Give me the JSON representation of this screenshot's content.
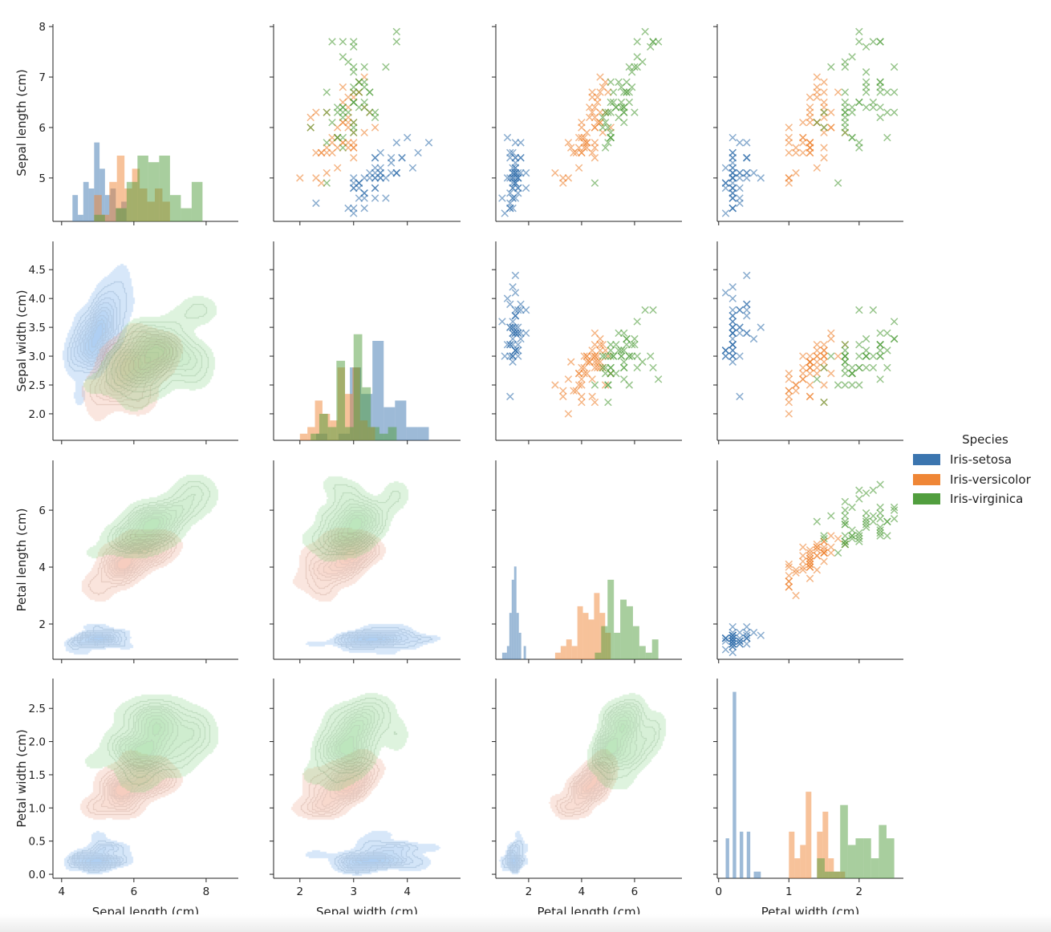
{
  "legend": {
    "title": "Species",
    "entries": [
      {
        "label": "Iris-setosa",
        "color": "#3b75af"
      },
      {
        "label": "Iris-versicolor",
        "color": "#ef8636"
      },
      {
        "label": "Iris-virginica",
        "color": "#519e3e"
      }
    ]
  },
  "chart_data": {
    "type": "scatter",
    "layout": "pairplot 4x4",
    "upper": "scatter (x markers)",
    "diagonal": "histogram (counts, 10 bins per species)",
    "lower": "kde (filled contours)",
    "grid": false,
    "legend_position": "right",
    "variables": [
      {
        "label": "Sepal length (cm)",
        "xlim": [
          3.76,
          8.89
        ],
        "ylim": [
          4.14,
          8.05
        ],
        "xticks": [
          4,
          6,
          8
        ],
        "xtick_labels": [
          "4",
          "6",
          "8"
        ],
        "yticks": [
          5,
          6,
          7,
          8
        ],
        "ytick_labels": [
          "5",
          "6",
          "7",
          "8"
        ]
      },
      {
        "label": "Sepal width (cm)",
        "xlim": [
          1.51,
          4.99
        ],
        "ylim": [
          1.54,
          4.99
        ],
        "xticks": [
          2,
          3,
          4
        ],
        "xtick_labels": [
          "2",
          "3",
          "4"
        ],
        "yticks": [
          2.0,
          2.5,
          3.0,
          3.5,
          4.0,
          4.5
        ],
        "ytick_labels": [
          "2.0",
          "2.5",
          "3.0",
          "3.5",
          "4.0",
          "4.5"
        ]
      },
      {
        "label": "Petal length (cm)",
        "xlim": [
          0.76,
          7.79
        ],
        "ylim": [
          0.76,
          7.75
        ],
        "xticks": [
          2,
          4,
          6
        ],
        "xtick_labels": [
          "2",
          "4",
          "6"
        ],
        "yticks": [
          2,
          4,
          6
        ],
        "ytick_labels": [
          "2",
          "4",
          "6"
        ]
      },
      {
        "label": "Petal width (cm)",
        "xlim": [
          -0.02,
          2.63
        ],
        "ylim": [
          -0.06,
          2.95
        ],
        "xticks": [
          0,
          1,
          2
        ],
        "xtick_labels": [
          "0",
          "1",
          "2"
        ],
        "yticks": [
          0.0,
          0.5,
          1.0,
          1.5,
          2.0,
          2.5
        ],
        "ytick_labels": [
          "0.0",
          "0.5",
          "1.0",
          "1.5",
          "2.0",
          "2.5"
        ]
      }
    ],
    "series": [
      {
        "name": "Iris-setosa",
        "color": "#3b75af",
        "kde_color": "#5b9ee6",
        "points": [
          [
            5.1,
            3.5,
            1.4,
            0.2
          ],
          [
            4.9,
            3.0,
            1.4,
            0.2
          ],
          [
            4.7,
            3.2,
            1.3,
            0.2
          ],
          [
            4.6,
            3.1,
            1.5,
            0.2
          ],
          [
            5.0,
            3.6,
            1.4,
            0.2
          ],
          [
            5.4,
            3.9,
            1.7,
            0.4
          ],
          [
            4.6,
            3.4,
            1.4,
            0.3
          ],
          [
            5.0,
            3.4,
            1.5,
            0.2
          ],
          [
            4.4,
            2.9,
            1.4,
            0.2
          ],
          [
            4.9,
            3.1,
            1.5,
            0.1
          ],
          [
            5.4,
            3.7,
            1.5,
            0.2
          ],
          [
            4.8,
            3.4,
            1.6,
            0.2
          ],
          [
            4.8,
            3.0,
            1.4,
            0.1
          ],
          [
            4.3,
            3.0,
            1.1,
            0.1
          ],
          [
            5.8,
            4.0,
            1.2,
            0.2
          ],
          [
            5.7,
            4.4,
            1.5,
            0.4
          ],
          [
            5.4,
            3.9,
            1.3,
            0.4
          ],
          [
            5.1,
            3.5,
            1.4,
            0.3
          ],
          [
            5.7,
            3.8,
            1.7,
            0.3
          ],
          [
            5.1,
            3.8,
            1.5,
            0.3
          ],
          [
            5.4,
            3.4,
            1.7,
            0.2
          ],
          [
            5.1,
            3.7,
            1.5,
            0.4
          ],
          [
            4.6,
            3.6,
            1.0,
            0.2
          ],
          [
            5.1,
            3.3,
            1.7,
            0.5
          ],
          [
            4.8,
            3.4,
            1.9,
            0.2
          ],
          [
            5.0,
            3.0,
            1.6,
            0.2
          ],
          [
            5.0,
            3.4,
            1.6,
            0.4
          ],
          [
            5.2,
            3.5,
            1.5,
            0.2
          ],
          [
            5.2,
            3.4,
            1.4,
            0.2
          ],
          [
            4.7,
            3.2,
            1.6,
            0.2
          ],
          [
            4.8,
            3.1,
            1.6,
            0.2
          ],
          [
            5.4,
            3.4,
            1.5,
            0.4
          ],
          [
            5.2,
            4.1,
            1.5,
            0.1
          ],
          [
            5.5,
            4.2,
            1.4,
            0.2
          ],
          [
            4.9,
            3.1,
            1.5,
            0.1
          ],
          [
            5.0,
            3.2,
            1.2,
            0.2
          ],
          [
            5.5,
            3.5,
            1.3,
            0.2
          ],
          [
            4.9,
            3.1,
            1.5,
            0.1
          ],
          [
            4.4,
            3.0,
            1.3,
            0.2
          ],
          [
            5.1,
            3.4,
            1.5,
            0.2
          ],
          [
            5.0,
            3.5,
            1.3,
            0.3
          ],
          [
            4.5,
            2.3,
            1.3,
            0.3
          ],
          [
            4.4,
            3.2,
            1.3,
            0.2
          ],
          [
            5.0,
            3.5,
            1.6,
            0.6
          ],
          [
            5.1,
            3.8,
            1.9,
            0.4
          ],
          [
            4.8,
            3.0,
            1.4,
            0.3
          ],
          [
            5.1,
            3.8,
            1.6,
            0.2
          ],
          [
            4.6,
            3.2,
            1.4,
            0.2
          ],
          [
            5.3,
            3.7,
            1.5,
            0.2
          ],
          [
            5.0,
            3.3,
            1.4,
            0.2
          ]
        ]
      },
      {
        "name": "Iris-versicolor",
        "color": "#ef8636",
        "kde_color": "#ec9a7c",
        "points": [
          [
            7.0,
            3.2,
            4.7,
            1.4
          ],
          [
            6.4,
            3.2,
            4.5,
            1.5
          ],
          [
            6.9,
            3.1,
            4.9,
            1.5
          ],
          [
            5.5,
            2.3,
            4.0,
            1.3
          ],
          [
            6.5,
            2.8,
            4.6,
            1.5
          ],
          [
            5.7,
            2.8,
            4.5,
            1.3
          ],
          [
            6.3,
            3.3,
            4.7,
            1.6
          ],
          [
            4.9,
            2.4,
            3.3,
            1.0
          ],
          [
            6.6,
            2.9,
            4.6,
            1.3
          ],
          [
            5.2,
            2.7,
            3.9,
            1.4
          ],
          [
            5.0,
            2.0,
            3.5,
            1.0
          ],
          [
            5.9,
            3.0,
            4.2,
            1.5
          ],
          [
            6.0,
            2.2,
            4.0,
            1.0
          ],
          [
            6.1,
            2.9,
            4.7,
            1.4
          ],
          [
            5.6,
            2.9,
            3.6,
            1.3
          ],
          [
            6.7,
            3.1,
            4.4,
            1.4
          ],
          [
            5.6,
            3.0,
            4.5,
            1.5
          ],
          [
            5.8,
            2.7,
            4.1,
            1.0
          ],
          [
            6.2,
            2.2,
            4.5,
            1.5
          ],
          [
            5.6,
            2.5,
            3.9,
            1.1
          ],
          [
            5.9,
            3.2,
            4.8,
            1.8
          ],
          [
            6.1,
            2.8,
            4.0,
            1.3
          ],
          [
            6.3,
            2.5,
            4.9,
            1.5
          ],
          [
            6.1,
            2.8,
            4.7,
            1.2
          ],
          [
            6.4,
            2.9,
            4.3,
            1.3
          ],
          [
            6.6,
            3.0,
            4.4,
            1.4
          ],
          [
            6.8,
            2.8,
            4.8,
            1.4
          ],
          [
            6.7,
            3.0,
            5.0,
            1.7
          ],
          [
            6.0,
            2.9,
            4.5,
            1.5
          ],
          [
            5.7,
            2.6,
            3.5,
            1.0
          ],
          [
            5.5,
            2.4,
            3.8,
            1.1
          ],
          [
            5.5,
            2.4,
            3.7,
            1.0
          ],
          [
            5.8,
            2.7,
            3.9,
            1.2
          ],
          [
            6.0,
            2.7,
            5.1,
            1.6
          ],
          [
            5.4,
            3.0,
            4.5,
            1.5
          ],
          [
            6.0,
            3.4,
            4.5,
            1.6
          ],
          [
            6.7,
            3.1,
            4.7,
            1.5
          ],
          [
            6.3,
            2.3,
            4.4,
            1.3
          ],
          [
            5.6,
            3.0,
            4.1,
            1.3
          ],
          [
            5.5,
            2.5,
            4.0,
            1.3
          ],
          [
            5.5,
            2.6,
            4.4,
            1.2
          ],
          [
            6.1,
            3.0,
            4.6,
            1.4
          ],
          [
            5.8,
            2.6,
            4.0,
            1.2
          ],
          [
            5.0,
            2.3,
            3.3,
            1.0
          ],
          [
            5.6,
            2.7,
            4.2,
            1.3
          ],
          [
            5.7,
            3.0,
            4.2,
            1.2
          ],
          [
            5.7,
            2.9,
            4.2,
            1.3
          ],
          [
            6.2,
            2.9,
            4.3,
            1.3
          ],
          [
            5.1,
            2.5,
            3.0,
            1.1
          ],
          [
            5.7,
            2.8,
            4.1,
            1.3
          ]
        ]
      },
      {
        "name": "Iris-virginica",
        "color": "#519e3e",
        "kde_color": "#78cc78",
        "points": [
          [
            6.3,
            3.3,
            6.0,
            2.5
          ],
          [
            5.8,
            2.7,
            5.1,
            1.9
          ],
          [
            7.1,
            3.0,
            5.9,
            2.1
          ],
          [
            6.3,
            2.9,
            5.6,
            1.8
          ],
          [
            6.5,
            3.0,
            5.8,
            2.2
          ],
          [
            7.6,
            3.0,
            6.6,
            2.1
          ],
          [
            4.9,
            2.5,
            4.5,
            1.7
          ],
          [
            7.3,
            2.9,
            6.3,
            1.8
          ],
          [
            6.7,
            2.5,
            5.8,
            1.8
          ],
          [
            7.2,
            3.6,
            6.1,
            2.5
          ],
          [
            6.5,
            3.2,
            5.1,
            2.0
          ],
          [
            6.4,
            2.7,
            5.3,
            1.9
          ],
          [
            6.8,
            3.0,
            5.5,
            2.1
          ],
          [
            5.7,
            2.5,
            5.0,
            2.0
          ],
          [
            5.8,
            2.8,
            5.1,
            2.4
          ],
          [
            6.4,
            3.2,
            5.3,
            2.3
          ],
          [
            6.5,
            3.0,
            5.5,
            1.8
          ],
          [
            7.7,
            3.8,
            6.7,
            2.2
          ],
          [
            7.7,
            2.6,
            6.9,
            2.3
          ],
          [
            6.0,
            2.2,
            5.0,
            1.5
          ],
          [
            6.9,
            3.2,
            5.7,
            2.3
          ],
          [
            5.6,
            2.8,
            4.9,
            2.0
          ],
          [
            7.7,
            2.8,
            6.7,
            2.0
          ],
          [
            6.3,
            2.7,
            4.9,
            1.8
          ],
          [
            6.7,
            3.3,
            5.7,
            2.1
          ],
          [
            7.2,
            3.2,
            6.0,
            1.8
          ],
          [
            6.2,
            2.8,
            4.8,
            1.8
          ],
          [
            6.1,
            3.0,
            4.9,
            1.8
          ],
          [
            6.4,
            2.8,
            5.6,
            2.1
          ],
          [
            7.2,
            3.0,
            5.8,
            1.6
          ],
          [
            7.4,
            2.8,
            6.1,
            1.9
          ],
          [
            7.9,
            3.8,
            6.4,
            2.0
          ],
          [
            6.4,
            2.8,
            5.6,
            2.2
          ],
          [
            6.3,
            2.8,
            5.1,
            1.5
          ],
          [
            6.1,
            2.6,
            5.6,
            1.4
          ],
          [
            7.7,
            3.0,
            6.1,
            2.3
          ],
          [
            6.3,
            3.4,
            5.6,
            2.4
          ],
          [
            6.4,
            3.1,
            5.5,
            1.8
          ],
          [
            6.0,
            3.0,
            4.8,
            1.8
          ],
          [
            6.9,
            3.1,
            5.4,
            2.1
          ],
          [
            6.7,
            3.1,
            5.6,
            2.4
          ],
          [
            6.9,
            3.1,
            5.1,
            2.3
          ],
          [
            5.8,
            2.7,
            5.1,
            1.9
          ],
          [
            6.8,
            3.2,
            5.9,
            2.3
          ],
          [
            6.7,
            3.3,
            5.7,
            2.5
          ],
          [
            6.7,
            3.0,
            5.2,
            2.3
          ],
          [
            6.3,
            2.5,
            5.0,
            1.9
          ],
          [
            6.5,
            3.0,
            5.2,
            2.0
          ],
          [
            6.2,
            3.4,
            5.4,
            2.3
          ],
          [
            5.9,
            3.0,
            5.1,
            1.8
          ]
        ]
      }
    ]
  }
}
